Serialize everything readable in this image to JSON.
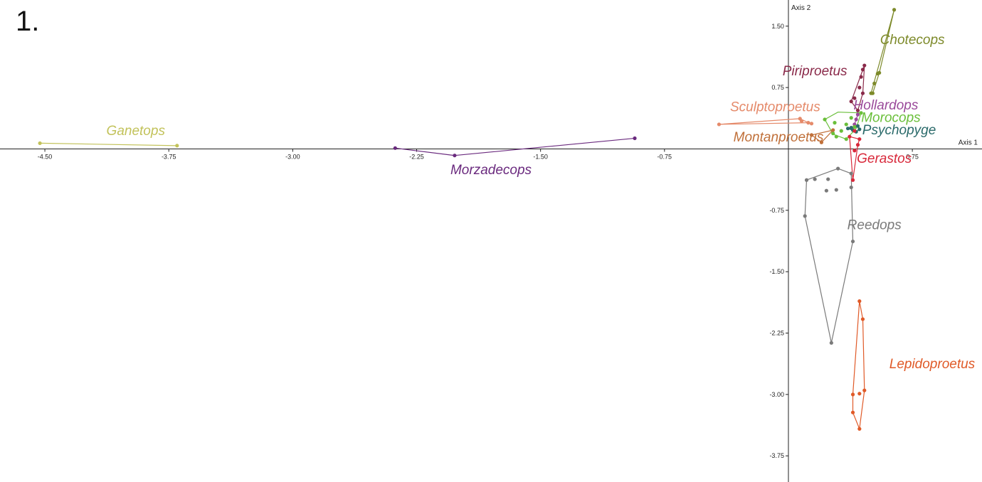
{
  "figure_label": "1.",
  "chart_data": {
    "type": "scatter",
    "xlabel": "Axis 1",
    "ylabel": "Axis 2",
    "xlim": [
      -4.75,
      1.15
    ],
    "ylim": [
      -4.0,
      1.75
    ],
    "x_ticks": [
      -4.5,
      -3.75,
      -3.0,
      -2.25,
      -1.5,
      -0.75,
      0.75
    ],
    "x_tick_labels": [
      "-4.50",
      "-3.75",
      "-3.00",
      "-2.25",
      "-1.50",
      "-0.75",
      "0.75"
    ],
    "y_ticks": [
      1.5,
      0.75,
      -0.75,
      -1.5,
      -2.25,
      -3.0,
      -3.75
    ],
    "y_tick_labels": [
      "1.50",
      "0.75",
      "-0.75",
      "-1.50",
      "-2.25",
      "-3.00",
      "-3.75"
    ],
    "series": [
      {
        "name": "Ganetops",
        "color": "#c2c25a",
        "label_pos": [
          -3.95,
          0.17
        ],
        "points": [
          [
            -4.53,
            0.07
          ],
          [
            -3.7,
            0.04
          ]
        ],
        "hull": [
          [
            -4.53,
            0.07
          ],
          [
            -3.7,
            0.04
          ]
        ]
      },
      {
        "name": "Morzadecops",
        "color": "#6a2a7e",
        "label_pos": [
          -1.8,
          -0.31
        ],
        "points": [
          [
            -2.38,
            0.01
          ],
          [
            -2.02,
            -0.08
          ],
          [
            -0.93,
            0.13
          ]
        ],
        "hull": [
          [
            -2.38,
            0.01
          ],
          [
            -2.02,
            -0.08
          ],
          [
            -0.93,
            0.13
          ]
        ]
      },
      {
        "name": "Chotecops",
        "color": "#7d8a2a",
        "label_pos": [
          0.75,
          1.28
        ],
        "points": [
          [
            0.64,
            1.7
          ],
          [
            0.54,
            0.92
          ],
          [
            0.55,
            0.93
          ],
          [
            0.52,
            0.8
          ],
          [
            0.5,
            0.68
          ],
          [
            0.51,
            0.68
          ]
        ],
        "hull": [
          [
            0.64,
            1.7
          ],
          [
            0.55,
            0.93
          ],
          [
            0.51,
            0.68
          ],
          [
            0.5,
            0.68
          ],
          [
            0.64,
            1.7
          ]
        ]
      },
      {
        "name": "Piriproetus",
        "color": "#8a2a4a",
        "label_pos": [
          0.16,
          0.9
        ],
        "points": [
          [
            0.46,
            1.02
          ],
          [
            0.45,
            0.97
          ],
          [
            0.44,
            0.88
          ],
          [
            0.43,
            0.75
          ],
          [
            0.45,
            0.68
          ],
          [
            0.4,
            0.62
          ],
          [
            0.38,
            0.58
          ],
          [
            0.42,
            0.47
          ]
        ],
        "hull": [
          [
            0.46,
            1.02
          ],
          [
            0.45,
            0.68
          ],
          [
            0.42,
            0.47
          ],
          [
            0.38,
            0.58
          ],
          [
            0.46,
            1.02
          ]
        ]
      },
      {
        "name": "Hollardops",
        "color": "#9a4a9a",
        "label_pos": [
          0.59,
          0.48
        ],
        "points": [
          [
            0.4,
            0.3
          ],
          [
            0.42,
            0.42
          ],
          [
            0.41,
            0.36
          ]
        ],
        "hull": [
          [
            0.4,
            0.3
          ],
          [
            0.42,
            0.42
          ],
          [
            0.41,
            0.36
          ],
          [
            0.4,
            0.3
          ]
        ]
      },
      {
        "name": "Sculptoproetus",
        "color": "#e58a6a",
        "label_pos": [
          -0.08,
          0.46
        ],
        "points": [
          [
            -0.42,
            0.3
          ],
          [
            0.07,
            0.37
          ],
          [
            0.08,
            0.34
          ],
          [
            0.12,
            0.32
          ],
          [
            0.14,
            0.31
          ]
        ],
        "hull": [
          [
            -0.42,
            0.3
          ],
          [
            0.07,
            0.37
          ],
          [
            0.12,
            0.32
          ],
          [
            -0.42,
            0.3
          ]
        ]
      },
      {
        "name": "Morocops",
        "color": "#6abf3a",
        "label_pos": [
          0.62,
          0.33
        ],
        "points": [
          [
            0.22,
            0.36
          ],
          [
            0.28,
            0.32
          ],
          [
            0.35,
            0.3
          ],
          [
            0.38,
            0.38
          ],
          [
            0.44,
            0.44
          ],
          [
            0.4,
            0.27
          ],
          [
            0.32,
            0.22
          ],
          [
            0.29,
            0.15
          ],
          [
            0.35,
            0.12
          ],
          [
            0.27,
            0.19
          ]
        ],
        "hull": [
          [
            0.22,
            0.36
          ],
          [
            0.3,
            0.45
          ],
          [
            0.44,
            0.44
          ],
          [
            0.41,
            0.25
          ],
          [
            0.35,
            0.12
          ],
          [
            0.27,
            0.18
          ],
          [
            0.22,
            0.36
          ]
        ]
      },
      {
        "name": "Montanproetus",
        "color": "#c0703a",
        "label_pos": [
          -0.06,
          0.09
        ],
        "points": [
          [
            0.14,
            0.17
          ],
          [
            0.2,
            0.08
          ],
          [
            0.27,
            0.23
          ]
        ],
        "hull": [
          [
            0.14,
            0.17
          ],
          [
            0.2,
            0.08
          ],
          [
            0.27,
            0.23
          ],
          [
            0.14,
            0.17
          ]
        ]
      },
      {
        "name": "Psychopyge",
        "color": "#2a6a6a",
        "label_pos": [
          0.67,
          0.18
        ],
        "points": [
          [
            0.38,
            0.26
          ],
          [
            0.41,
            0.21
          ],
          [
            0.43,
            0.24
          ],
          [
            0.39,
            0.23
          ],
          [
            0.36,
            0.25
          ],
          [
            0.42,
            0.28
          ]
        ],
        "hull": [
          [
            0.36,
            0.25
          ],
          [
            0.42,
            0.28
          ],
          [
            0.43,
            0.24
          ],
          [
            0.41,
            0.21
          ],
          [
            0.36,
            0.25
          ]
        ]
      },
      {
        "name": "Gerastos",
        "color": "#d8283a",
        "label_pos": [
          0.58,
          -0.17
        ],
        "points": [
          [
            0.4,
            0.22
          ],
          [
            0.37,
            0.15
          ],
          [
            0.42,
            0.05
          ],
          [
            0.4,
            -0.02
          ],
          [
            0.39,
            -0.38
          ],
          [
            0.43,
            0.12
          ]
        ],
        "hull": [
          [
            0.37,
            0.15
          ],
          [
            0.43,
            0.12
          ],
          [
            0.42,
            0.05
          ],
          [
            0.39,
            -0.38
          ],
          [
            0.37,
            0.15
          ]
        ]
      },
      {
        "name": "Reedops",
        "color": "#7a7a7a",
        "label_pos": [
          0.52,
          -0.98
        ],
        "points": [
          [
            0.3,
            -0.24
          ],
          [
            0.38,
            -0.3
          ],
          [
            0.24,
            -0.37
          ],
          [
            0.16,
            -0.37
          ],
          [
            0.11,
            -0.38
          ],
          [
            0.29,
            -0.5
          ],
          [
            0.23,
            -0.51
          ],
          [
            0.38,
            -0.47
          ],
          [
            0.1,
            -0.82
          ],
          [
            0.39,
            -1.13
          ],
          [
            0.26,
            -2.37
          ]
        ],
        "hull": [
          [
            0.3,
            -0.24
          ],
          [
            0.38,
            -0.3
          ],
          [
            0.39,
            -1.13
          ],
          [
            0.26,
            -2.37
          ],
          [
            0.1,
            -0.82
          ],
          [
            0.11,
            -0.38
          ],
          [
            0.3,
            -0.24
          ]
        ]
      },
      {
        "name": "Lepidoproetus",
        "color": "#e05a28",
        "label_pos": [
          0.87,
          -2.68
        ],
        "points": [
          [
            0.43,
            -1.86
          ],
          [
            0.45,
            -2.08
          ],
          [
            0.46,
            -2.95
          ],
          [
            0.43,
            -2.99
          ],
          [
            0.39,
            -3.0
          ],
          [
            0.39,
            -3.22
          ],
          [
            0.43,
            -3.42
          ]
        ],
        "hull": [
          [
            0.43,
            -1.86
          ],
          [
            0.45,
            -2.08
          ],
          [
            0.46,
            -2.95
          ],
          [
            0.43,
            -3.42
          ],
          [
            0.39,
            -3.22
          ],
          [
            0.39,
            -3.0
          ],
          [
            0.43,
            -1.86
          ]
        ]
      }
    ]
  }
}
